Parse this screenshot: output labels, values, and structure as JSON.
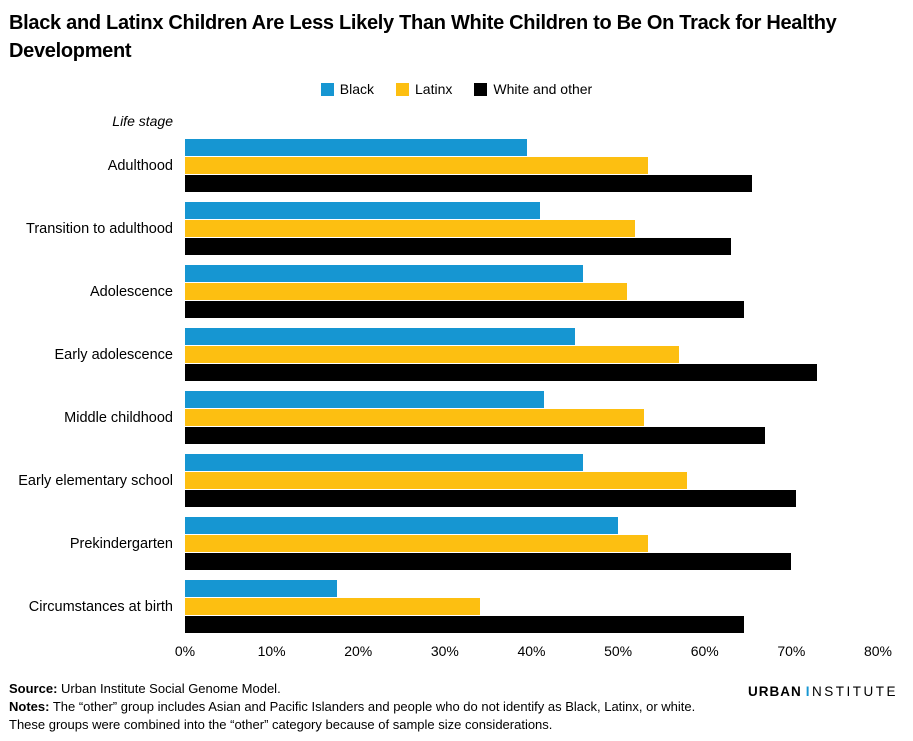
{
  "header": {
    "title": "Black and Latinx Children Are Less Likely Than White Children to Be On Track for Healthy Development"
  },
  "chart_data": {
    "type": "bar",
    "orientation": "horizontal",
    "title": "Black and Latinx Children Are Less Likely Than White Children to Be On Track for Healthy Development",
    "ylabel": "Life stage",
    "xlabel": "",
    "xlim": [
      0,
      80
    ],
    "x_tick_labels": [
      "0%",
      "10%",
      "20%",
      "30%",
      "40%",
      "50%",
      "60%",
      "70%",
      "80%"
    ],
    "grid": false,
    "legend_position": "top",
    "categories": [
      "Adulthood",
      "Transition to adulthood",
      "Adolescence",
      "Early adolescence",
      "Middle childhood",
      "Early elementary school",
      "Prekindergarten",
      "Circumstances at birth"
    ],
    "series": [
      {
        "name": "Black",
        "color": "#1696d2",
        "values": [
          39.5,
          41,
          46,
          45,
          41.5,
          46,
          50,
          17.5
        ]
      },
      {
        "name": "Latinx",
        "color": "#fdbf11",
        "values": [
          53.5,
          52,
          51,
          57,
          53,
          58,
          53.5,
          34
        ]
      },
      {
        "name": "White and other",
        "color": "#000000",
        "values": [
          65.5,
          63,
          64.5,
          73,
          67,
          70.5,
          70,
          64.5
        ]
      }
    ]
  },
  "footer": {
    "source_label": "Source:",
    "source_text": " Urban Institute Social Genome Model.",
    "notes_label": "Notes:",
    "notes_text": " The “other” group includes Asian and Pacific Islanders and people who do not identify as Black, Latinx, or white. These groups were combined into the “other” category because of sample size considerations.",
    "logo_urban": "URBAN",
    "logo_institute": "INSTITUTE"
  }
}
